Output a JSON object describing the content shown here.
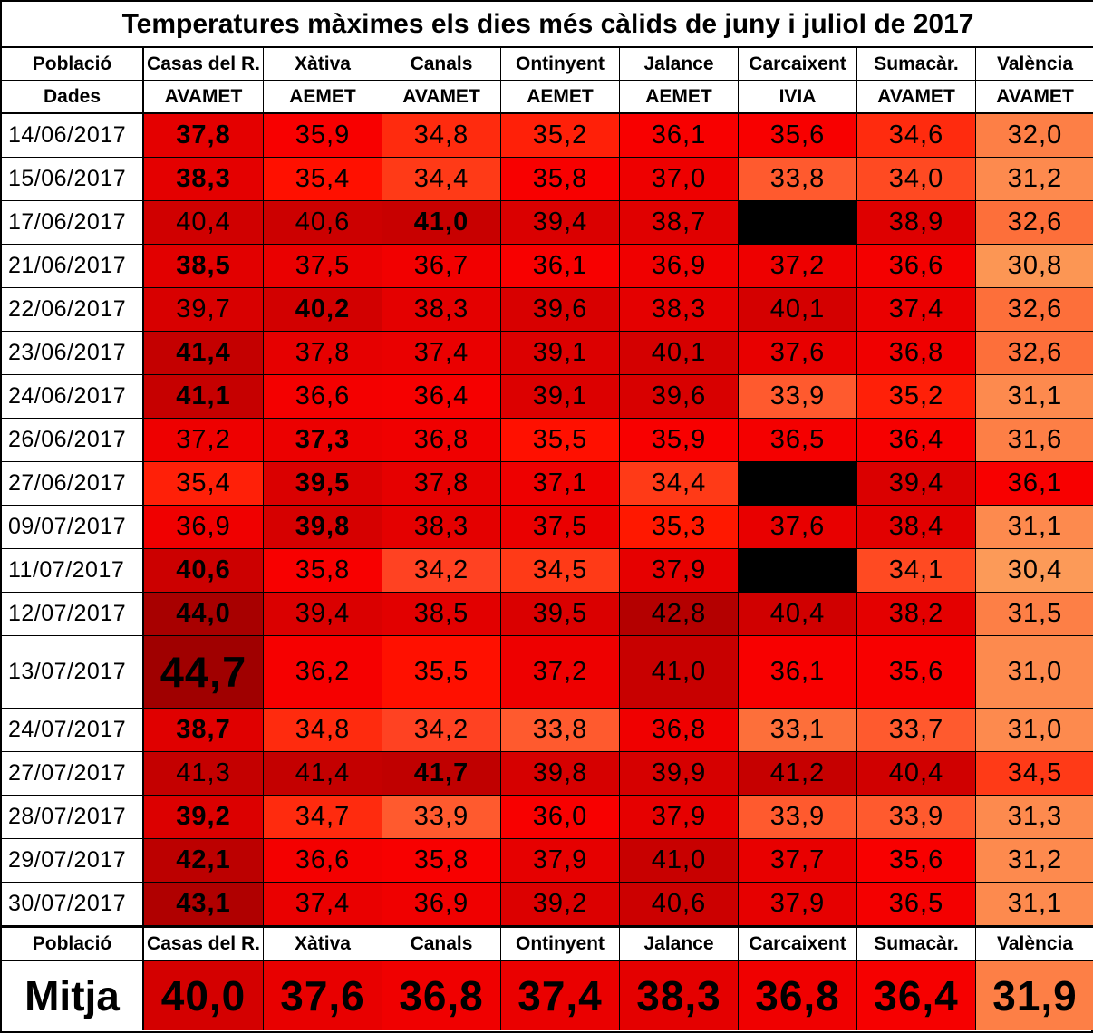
{
  "title": "Temperatures màximes els dies més càlids de juny i juliol de 2017",
  "header": {
    "poblacio_label": "Població",
    "dades_label": "Dades",
    "stations": [
      "Casas del R.",
      "Xàtiva",
      "Canals",
      "Ontinyent",
      "Jalance",
      "Carcaixent",
      "Sumacàr.",
      "València"
    ],
    "sources": [
      "AVAMET",
      "AEMET",
      "AVAMET",
      "AEMET",
      "AEMET",
      "IVIA",
      "AVAMET",
      "AVAMET"
    ]
  },
  "rows": [
    {
      "date": "14/06/2017",
      "values": [
        "37,8",
        "35,9",
        "34,8",
        "35,2",
        "36,1",
        "35,6",
        "34,6",
        "32,0"
      ],
      "colors": [
        "#e40000",
        "#f80000",
        "#ff2b0e",
        "#ff2008",
        "#f80000",
        "#f80000",
        "#ff2b0e",
        "#fd7f46"
      ],
      "bold": [
        0
      ]
    },
    {
      "date": "15/06/2017",
      "values": [
        "38,3",
        "35,4",
        "34,4",
        "35,8",
        "37,0",
        "33,8",
        "34,0",
        "31,2"
      ],
      "colors": [
        "#e40000",
        "#ff1000",
        "#ff3a17",
        "#f80000",
        "#ee0000",
        "#ff5a2e",
        "#ff4a22",
        "#fd8a4e"
      ],
      "bold": [
        0
      ]
    },
    {
      "date": "17/06/2017",
      "values": [
        "40,4",
        "40,6",
        "41,0",
        "39,4",
        "38,7",
        "",
        "38,9",
        "32,6"
      ],
      "colors": [
        "#d00000",
        "#cc0000",
        "#c80000",
        "#da0000",
        "#e00000",
        "#000000",
        "#de0000",
        "#fd6f3a"
      ],
      "bold": [
        2
      ]
    },
    {
      "date": "21/06/2017",
      "values": [
        "38,5",
        "37,5",
        "36,7",
        "36,1",
        "36,9",
        "37,2",
        "36,6",
        "30,8"
      ],
      "colors": [
        "#e20000",
        "#ea0000",
        "#f20000",
        "#f80000",
        "#f00000",
        "#ee0000",
        "#f40000",
        "#fc9654"
      ],
      "bold": [
        0
      ]
    },
    {
      "date": "22/06/2017",
      "values": [
        "39,7",
        "40,2",
        "38,3",
        "39,6",
        "38,3",
        "40,1",
        "37,4",
        "32,6"
      ],
      "colors": [
        "#d80000",
        "#d20000",
        "#e40000",
        "#d80000",
        "#e40000",
        "#d40000",
        "#ea0000",
        "#fd6f3a"
      ],
      "bold": [
        1
      ]
    },
    {
      "date": "23/06/2017",
      "values": [
        "41,4",
        "37,8",
        "37,4",
        "39,1",
        "40,1",
        "37,6",
        "36,8",
        "32,6"
      ],
      "colors": [
        "#c40000",
        "#e60000",
        "#ea0000",
        "#dc0000",
        "#d40000",
        "#e80000",
        "#f00000",
        "#fd6f3a"
      ],
      "bold": [
        0
      ]
    },
    {
      "date": "24/06/2017",
      "values": [
        "41,1",
        "36,6",
        "36,4",
        "39,1",
        "39,6",
        "33,9",
        "35,2",
        "31,1"
      ],
      "colors": [
        "#c60000",
        "#f40000",
        "#f60000",
        "#dc0000",
        "#d80000",
        "#ff5a2e",
        "#ff2008",
        "#fd8a4e"
      ],
      "bold": [
        0
      ]
    },
    {
      "date": "26/06/2017",
      "values": [
        "37,2",
        "37,3",
        "36,8",
        "35,5",
        "35,9",
        "36,5",
        "36,4",
        "31,6"
      ],
      "colors": [
        "#ee0000",
        "#ec0000",
        "#f00000",
        "#ff1000",
        "#f80000",
        "#f40000",
        "#f60000",
        "#fd7f46"
      ],
      "bold": [
        1
      ]
    },
    {
      "date": "27/06/2017",
      "values": [
        "35,4",
        "39,5",
        "37,8",
        "37,1",
        "34,4",
        "",
        "39,4",
        "36,1"
      ],
      "colors": [
        "#ff2008",
        "#da0000",
        "#e60000",
        "#ee0000",
        "#ff3a17",
        "#000000",
        "#da0000",
        "#f80000"
      ],
      "bold": [
        1
      ]
    },
    {
      "date": "09/07/2017",
      "values": [
        "36,9",
        "39,8",
        "38,3",
        "37,5",
        "35,3",
        "37,6",
        "38,4",
        "31,1"
      ],
      "colors": [
        "#f00000",
        "#d60000",
        "#e40000",
        "#ea0000",
        "#ff1800",
        "#e80000",
        "#e20000",
        "#fd8a4e"
      ],
      "bold": [
        1
      ]
    },
    {
      "date": "11/07/2017",
      "values": [
        "40,6",
        "35,8",
        "34,2",
        "34,5",
        "37,9",
        "",
        "34,1",
        "30,4"
      ],
      "colors": [
        "#cc0000",
        "#f80000",
        "#ff4222",
        "#ff3a17",
        "#e60000",
        "#000000",
        "#ff4a22",
        "#fc9a58"
      ],
      "bold": [
        0
      ]
    },
    {
      "date": "12/07/2017",
      "values": [
        "44,0",
        "39,4",
        "38,5",
        "39,5",
        "42,8",
        "40,4",
        "38,2",
        "31,5"
      ],
      "colors": [
        "#a80000",
        "#da0000",
        "#e20000",
        "#da0000",
        "#b40000",
        "#d00000",
        "#e40000",
        "#fd7f46"
      ],
      "bold": [
        0
      ]
    },
    {
      "date": "13/07/2017",
      "values": [
        "44,7",
        "36,2",
        "35,5",
        "37,2",
        "41,0",
        "36,1",
        "35,6",
        "31,0"
      ],
      "colors": [
        "#a00000",
        "#f60000",
        "#ff1000",
        "#ee0000",
        "#c80000",
        "#f80000",
        "#f80000",
        "#fd8a4e"
      ],
      "bold": [
        0
      ]
    },
    {
      "date": "24/07/2017",
      "values": [
        "38,7",
        "34,8",
        "34,2",
        "33,8",
        "36,8",
        "33,1",
        "33,7",
        "31,0"
      ],
      "colors": [
        "#e00000",
        "#ff2b0e",
        "#ff4222",
        "#ff5a2e",
        "#f00000",
        "#fd6f3a",
        "#ff5a2e",
        "#fd8a4e"
      ],
      "bold": [
        0
      ]
    },
    {
      "date": "27/07/2017",
      "values": [
        "41,3",
        "41,4",
        "41,7",
        "39,8",
        "39,9",
        "41,2",
        "40,4",
        "34,5"
      ],
      "colors": [
        "#c40000",
        "#c40000",
        "#c00000",
        "#d60000",
        "#d60000",
        "#c60000",
        "#d00000",
        "#ff3a17"
      ],
      "bold": [
        2
      ]
    },
    {
      "date": "28/07/2017",
      "values": [
        "39,2",
        "34,7",
        "33,9",
        "36,0",
        "37,9",
        "33,9",
        "33,9",
        "31,3"
      ],
      "colors": [
        "#dc0000",
        "#ff2b0e",
        "#ff5a2e",
        "#f80000",
        "#e60000",
        "#ff5a2e",
        "#ff5a2e",
        "#fd8a4e"
      ],
      "bold": [
        0
      ]
    },
    {
      "date": "29/07/2017",
      "values": [
        "42,1",
        "36,6",
        "35,8",
        "37,9",
        "41,0",
        "37,7",
        "35,6",
        "31,2"
      ],
      "colors": [
        "#bc0000",
        "#f40000",
        "#f80000",
        "#e60000",
        "#c80000",
        "#e80000",
        "#f80000",
        "#fd8a4e"
      ],
      "bold": [
        0
      ]
    },
    {
      "date": "30/07/2017",
      "values": [
        "43,1",
        "37,4",
        "36,9",
        "39,2",
        "40,6",
        "37,9",
        "36,5",
        "31,1"
      ],
      "colors": [
        "#b00000",
        "#ea0000",
        "#f00000",
        "#dc0000",
        "#cc0000",
        "#e60000",
        "#f40000",
        "#fd8a4e"
      ],
      "bold": [
        0
      ]
    }
  ],
  "huge_cell": {
    "row": 12,
    "col": 0
  },
  "footer": {
    "poblacio_label": "Població",
    "stations": [
      "Casas del R.",
      "Xàtiva",
      "Canals",
      "Ontinyent",
      "Jalance",
      "Carcaixent",
      "Sumacàr.",
      "València"
    ],
    "mitja_label": "Mitja",
    "mitja_values": [
      "40,0",
      "37,6",
      "36,8",
      "37,4",
      "38,3",
      "36,8",
      "36,4",
      "31,9"
    ],
    "mitja_colors": [
      "#d40000",
      "#e80000",
      "#f00000",
      "#ea0000",
      "#e40000",
      "#f00000",
      "#f60000",
      "#fd7f46"
    ]
  }
}
